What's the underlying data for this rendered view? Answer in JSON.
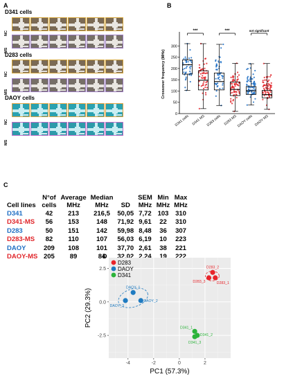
{
  "panel_a": {
    "letter": "A",
    "groups": [
      {
        "title": "D341 cells",
        "rows": [
          "NC",
          "MS"
        ],
        "style": "gray"
      },
      {
        "title": "D283 cells",
        "rows": [
          "NC",
          "MS"
        ],
        "style": "gray"
      },
      {
        "title": "DAOY cells",
        "rows": [
          "NC",
          "MS"
        ],
        "style": "teal"
      }
    ]
  },
  "panel_b": {
    "letter": "B",
    "chart_data": {
      "type": "box",
      "ylabel": "Crossover frequency (MHz)",
      "ylim": [
        0,
        350
      ],
      "yticks": [
        0,
        50,
        100,
        150,
        200,
        250,
        300
      ],
      "categories": [
        "D341 cells",
        "D341 MS",
        "D283 cells",
        "D283 MS",
        "DAOY cells",
        "DAOY MS"
      ],
      "colors": [
        "#1f6fc4",
        "#e0252a",
        "#1f6fc4",
        "#e0252a",
        "#1f6fc4",
        "#e0252a"
      ],
      "boxes": [
        {
          "min": 103,
          "q1": 175,
          "median": 216.5,
          "q3": 238,
          "max": 310
        },
        {
          "min": 22,
          "q1": 105,
          "median": 148,
          "q3": 190,
          "max": 310
        },
        {
          "min": 36,
          "q1": 105,
          "median": 142,
          "q3": 180,
          "max": 307
        },
        {
          "min": 10,
          "q1": 80,
          "median": 107,
          "q3": 140,
          "max": 223
        },
        {
          "min": 38,
          "q1": 85,
          "median": 101,
          "q3": 120,
          "max": 221
        },
        {
          "min": 19,
          "q1": 70,
          "median": 84,
          "q3": 103,
          "max": 222
        }
      ],
      "n": [
        42,
        56,
        50,
        82,
        209,
        205
      ],
      "annotations": [
        {
          "between": [
            0,
            1
          ],
          "text": "***"
        },
        {
          "between": [
            2,
            3
          ],
          "text": "***"
        },
        {
          "between": [
            4,
            5
          ],
          "text": "not significant"
        }
      ]
    }
  },
  "panel_c": {
    "letter": "C",
    "headers": [
      {
        "line1": "Cell lines",
        "line2": ""
      },
      {
        "line1": "N°of",
        "line2": "cells"
      },
      {
        "line1": "Average",
        "line2": "MHz"
      },
      {
        "line1": "Median",
        "line2": "MHz"
      },
      {
        "line1": "SD",
        "line2": ""
      },
      {
        "line1": "SEM",
        "line2": "MHz"
      },
      {
        "line1": "Min",
        "line2": "MHz"
      },
      {
        "line1": "Max",
        "line2": "MHz"
      }
    ],
    "rows": [
      {
        "name": "D341",
        "color": "#1f6fc4",
        "values": [
          "42",
          "213",
          "216,5",
          "50,05",
          "7,72",
          "103",
          "310"
        ]
      },
      {
        "name": "D341-MS",
        "color": "#e0252a",
        "values": [
          "56",
          "153",
          "148",
          "71,92",
          "9,61",
          "22",
          "310"
        ]
      },
      {
        "name": "D283",
        "color": "#1f6fc4",
        "values": [
          "50",
          "151",
          "142",
          "59,98",
          "8,48",
          "36",
          "307"
        ]
      },
      {
        "name": "D283-MS",
        "color": "#e0252a",
        "values": [
          "82",
          "110",
          "107",
          "56,03",
          "6,19",
          "10",
          "223"
        ]
      },
      {
        "name": "DAOY",
        "color": "#1f6fc4",
        "values": [
          "209",
          "108",
          "101",
          "37,70",
          "2,61",
          "38",
          "221"
        ]
      },
      {
        "name": "DAOY-MS",
        "color": "#e0252a",
        "values": [
          "205",
          "89",
          "84",
          "32,02",
          "2,24",
          "19",
          "222"
        ]
      }
    ]
  },
  "panel_d": {
    "letter": "D",
    "chart_data": {
      "type": "scatter",
      "xlabel": "PC1 (57.3%)",
      "ylabel": "PC2 (29.3%)",
      "xlim": [
        -5.5,
        4
      ],
      "ylim": [
        -4.2,
        3.3
      ],
      "xticks": [
        -4,
        -2,
        0,
        2
      ],
      "yticks": [
        2.5,
        0.0,
        -2.5
      ],
      "ytick_labels": [
        "2.5",
        "0.0",
        "-2.5"
      ],
      "legend": [
        {
          "name": "D283",
          "color": "#e8242a"
        },
        {
          "name": "DAOY",
          "color": "#1f7bc1"
        },
        {
          "name": "D341",
          "color": "#2bb33a"
        }
      ],
      "points": [
        {
          "group": "D283",
          "label": "D283_2",
          "x": 2.6,
          "y": 2.2,
          "color": "#e8242a"
        },
        {
          "group": "D283",
          "label": "D283_1",
          "x": 2.8,
          "y": 1.8,
          "color": "#e8242a"
        },
        {
          "group": "D283",
          "label": "D283_3",
          "x": 2.3,
          "y": 1.8,
          "color": "#e8242a"
        },
        {
          "group": "DAOY",
          "label": "DAOY_1",
          "x": -3.6,
          "y": 0.7,
          "color": "#1f7bc1"
        },
        {
          "group": "DAOY",
          "label": "DAOY_2",
          "x": -3.0,
          "y": 0.1,
          "color": "#1f7bc1"
        },
        {
          "group": "DAOY",
          "label": "DAOY_3",
          "x": -4.2,
          "y": 0.1,
          "color": "#1f7bc1"
        },
        {
          "group": "D341",
          "label": "D341_1",
          "x": 1.2,
          "y": -2.2,
          "color": "#2bb33a"
        },
        {
          "group": "D341",
          "label": "D341_2",
          "x": 1.4,
          "y": -2.5,
          "color": "#2bb33a"
        },
        {
          "group": "D341",
          "label": "D341_3",
          "x": 1.2,
          "y": -2.6,
          "color": "#2bb33a"
        }
      ]
    }
  }
}
